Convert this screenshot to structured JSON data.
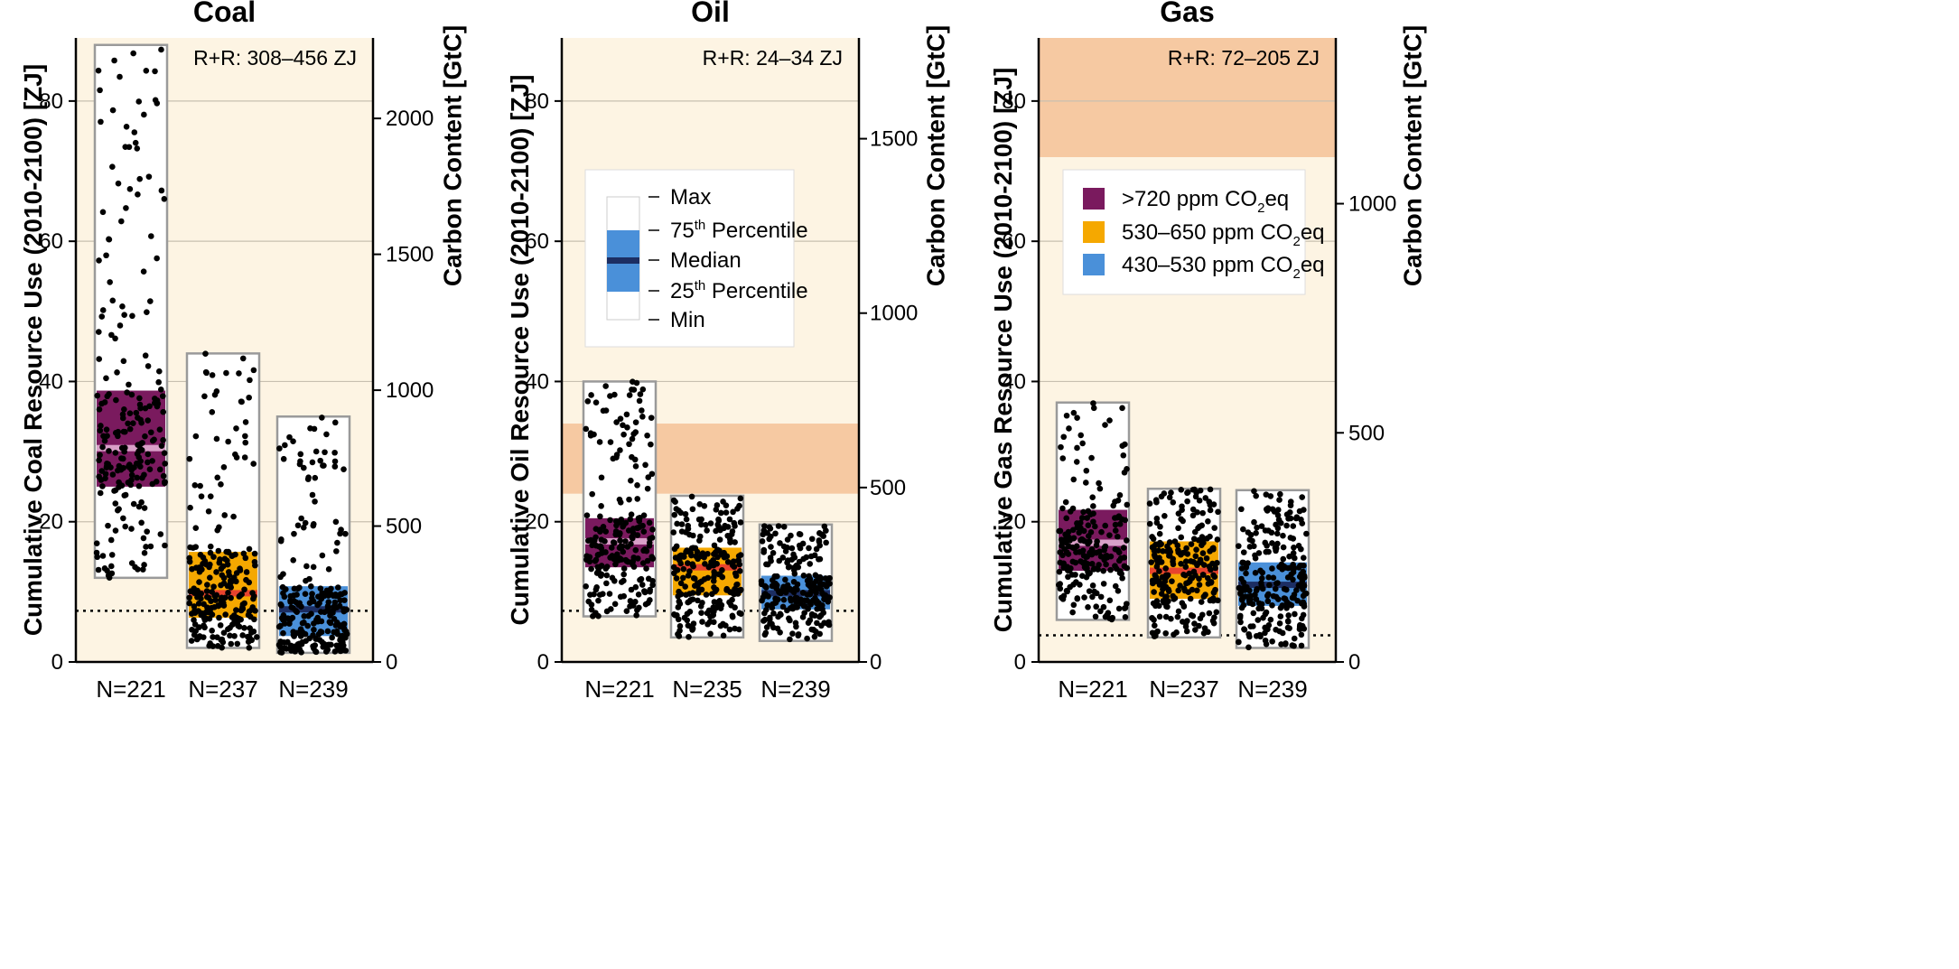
{
  "chart_data": [
    {
      "type": "box-strip",
      "title": "Coal",
      "ylabel": "Cumulative Coal Resource Use  (2010-2100) [ZJ]",
      "y2label": "Carbon Content [GtC]",
      "ylim": [
        0,
        89
      ],
      "y2ticks": [
        {
          "value": 0,
          "label": "0"
        },
        {
          "value": 500,
          "label": "500"
        },
        {
          "value": 1000,
          "label": "1000"
        },
        {
          "value": 1500,
          "label": "1500"
        },
        {
          "value": 2000,
          "label": "2000"
        }
      ],
      "y2_per_zj": 25.8,
      "rr_text": "R+R: 308–456 ZJ",
      "rr_band": [
        308,
        456
      ],
      "dotted_line": 7.3,
      "categories": [
        "N=221",
        "N=237",
        "N=239"
      ],
      "boxes": [
        {
          "label": "N=221",
          "n": 221,
          "min": 12,
          "q1": 25,
          "median": 30.5,
          "q3": 38.7,
          "max": 88,
          "color": "#7a1a5e",
          "median_color": "#d9a0c8"
        },
        {
          "label": "N=237",
          "n": 237,
          "min": 2,
          "q1": 6.3,
          "median": 9.8,
          "q3": 15.7,
          "max": 44,
          "color": "#f5a800",
          "median_color": "#e8432e"
        },
        {
          "label": "N=239",
          "n": 239,
          "min": 1.3,
          "q1": 3.7,
          "median": 7.5,
          "q3": 10.8,
          "max": 35,
          "color": "#4a90d9",
          "median_color": "#1c2e63"
        }
      ]
    },
    {
      "type": "box-strip",
      "title": "Oil",
      "ylabel": "Cumulative Oil Resource Use  (2010-2100) [ZJ]",
      "y2label": "Carbon Content [GtC]",
      "ylim": [
        0,
        89
      ],
      "y2ticks": [
        {
          "value": 0,
          "label": "0"
        },
        {
          "value": 500,
          "label": "500"
        },
        {
          "value": 1000,
          "label": "1000"
        },
        {
          "value": 1500,
          "label": "1500"
        }
      ],
      "y2_per_zj": 20.1,
      "rr_text": "R+R: 24–34 ZJ",
      "rr_band": [
        24,
        34
      ],
      "dotted_line": 7.3,
      "categories": [
        "N=221",
        "N=235",
        "N=239"
      ],
      "boxes": [
        {
          "label": "N=221",
          "n": 221,
          "min": 6.5,
          "q1": 13.5,
          "median": 17.2,
          "q3": 20.5,
          "max": 40,
          "color": "#7a1a5e",
          "median_color": "#d9a0c8"
        },
        {
          "label": "N=235",
          "n": 235,
          "min": 3.5,
          "q1": 9.5,
          "median": 13.5,
          "q3": 16.3,
          "max": 23.7,
          "color": "#f5a800",
          "median_color": "#e8432e"
        },
        {
          "label": "N=239",
          "n": 239,
          "min": 3,
          "q1": 7.5,
          "median": 9.8,
          "q3": 12.3,
          "max": 19.6,
          "color": "#4a90d9",
          "median_color": "#1c2e63"
        }
      ],
      "legend": {
        "items": [
          "Max",
          "75th Percentile",
          "Median",
          "25th Percentile",
          "Min"
        ],
        "superscripts": [
          "",
          "th",
          "",
          "th",
          ""
        ]
      }
    },
    {
      "type": "box-strip",
      "title": "Gas",
      "ylabel": "Cumulative Gas Resource Use  (2010-2100) [ZJ]",
      "y2label": "Carbon Content [GtC]",
      "ylim": [
        0,
        89
      ],
      "y2ticks": [
        {
          "value": 0,
          "label": "0"
        },
        {
          "value": 500,
          "label": "500"
        },
        {
          "value": 1000,
          "label": "1000"
        }
      ],
      "y2_per_zj": 15.3,
      "rr_text": "R+R: 72–205 ZJ",
      "rr_band": [
        72,
        205
      ],
      "dotted_line": 3.8,
      "categories": [
        "N=221",
        "N=237",
        "N=239"
      ],
      "boxes": [
        {
          "label": "N=221",
          "n": 221,
          "min": 6,
          "q1": 13,
          "median": 17,
          "q3": 21.7,
          "max": 37,
          "color": "#7a1a5e",
          "median_color": "#d9a0c8"
        },
        {
          "label": "N=237",
          "n": 237,
          "min": 3.5,
          "q1": 9,
          "median": 13,
          "q3": 17.2,
          "max": 24.7,
          "color": "#f5a800",
          "median_color": "#e8432e"
        },
        {
          "label": "N=239",
          "n": 239,
          "min": 2,
          "q1": 8,
          "median": 11,
          "q3": 14.2,
          "max": 24.5,
          "color": "#4a90d9",
          "median_color": "#1c2e63"
        }
      ],
      "legend": {
        "items": [
          {
            "color": "#7a1a5e",
            "text": ">720 ppm CO",
            "sub": "2",
            "suffix": "eq"
          },
          {
            "color": "#f5a800",
            "text": "530–650 ppm CO",
            "sub": "2",
            "suffix": "eq"
          },
          {
            "color": "#4a90d9",
            "text": "430–530 ppm CO",
            "sub": "2",
            "suffix": "eq"
          }
        ]
      }
    }
  ],
  "colors": {
    "background": "#fdf4e3",
    "rr_band": "#f6c9a2",
    "grid": "#c8c0b0",
    "box_outline": "#9a9a9a",
    "point": "#000000"
  }
}
